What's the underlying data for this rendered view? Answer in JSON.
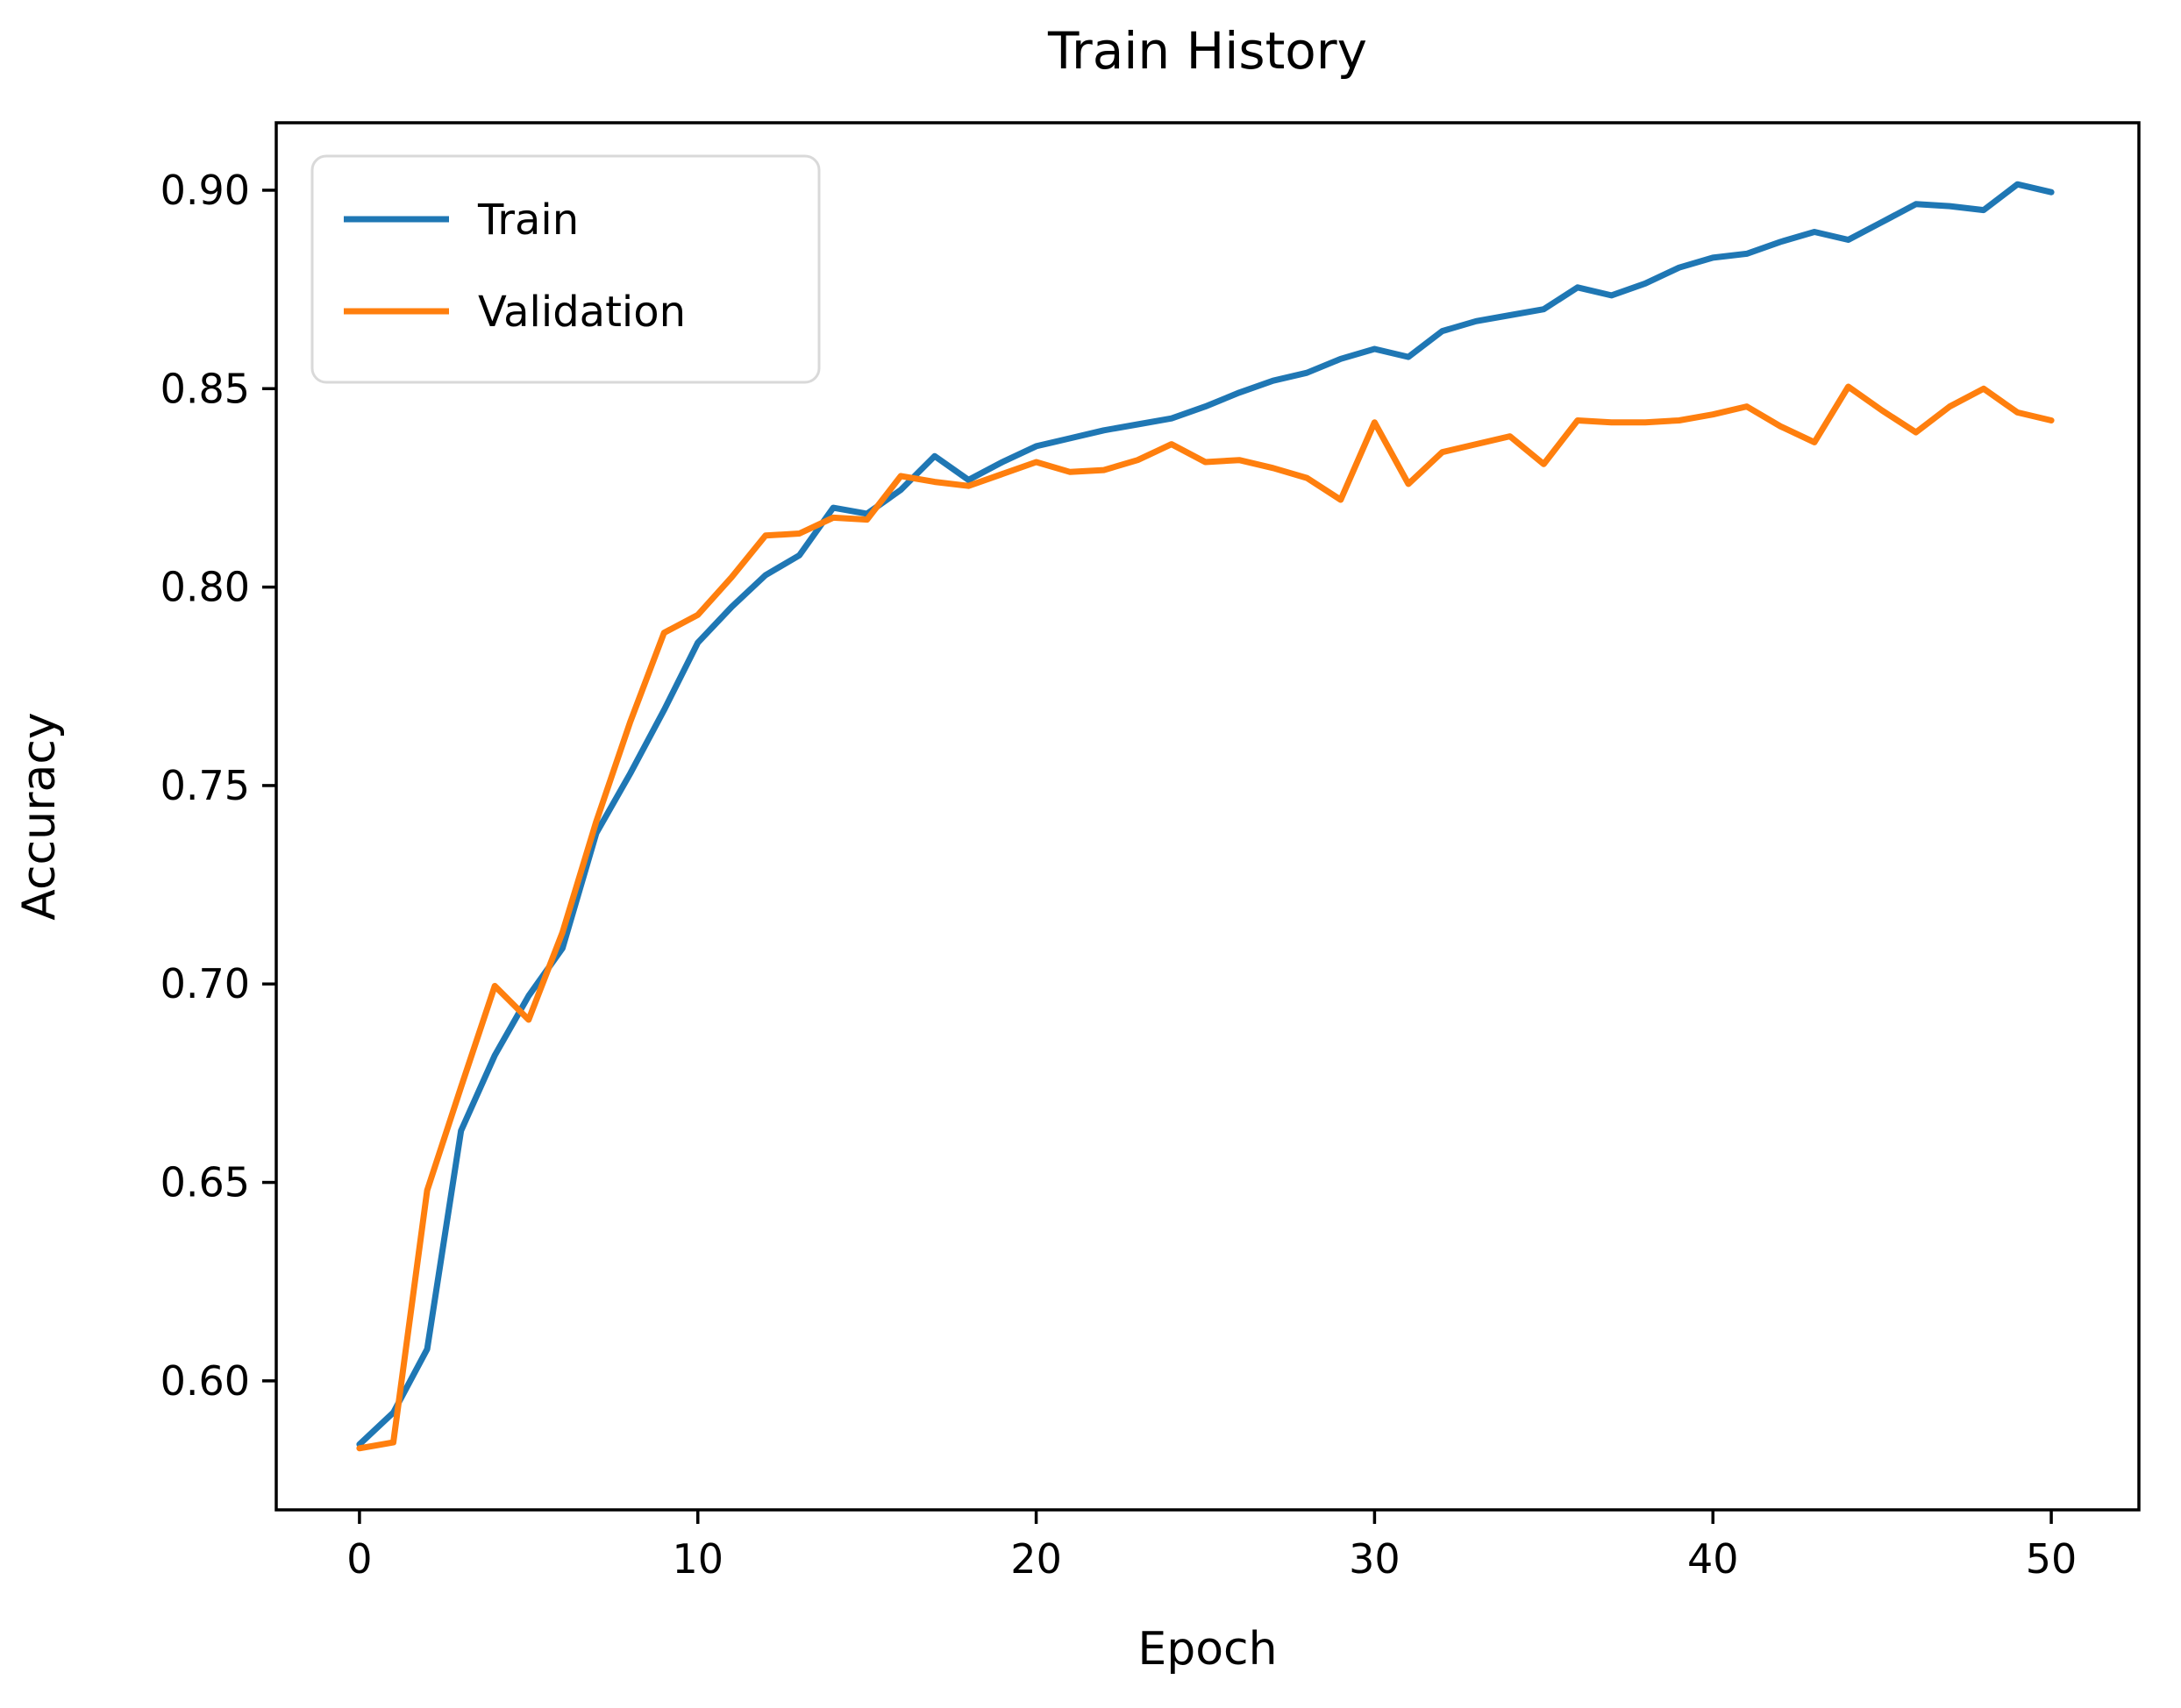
{
  "chart_data": {
    "type": "line",
    "title": "Train History",
    "xlabel": "Epoch",
    "ylabel": "Accuracy",
    "x": [
      0,
      1,
      2,
      3,
      4,
      5,
      6,
      7,
      8,
      9,
      10,
      11,
      12,
      13,
      14,
      15,
      16,
      17,
      18,
      19,
      20,
      21,
      22,
      23,
      24,
      25,
      26,
      27,
      28,
      29,
      30,
      31,
      32,
      33,
      34,
      35,
      36,
      37,
      38,
      39,
      40,
      41,
      42,
      43,
      44,
      45,
      46,
      47,
      48,
      49,
      50
    ],
    "series": [
      {
        "name": "Train",
        "color": "#1f77b4",
        "values": [
          0.584,
          0.592,
          0.608,
          0.663,
          0.682,
          0.697,
          0.709,
          0.738,
          0.753,
          0.769,
          0.786,
          0.795,
          0.803,
          0.808,
          0.82,
          0.8185,
          0.8245,
          0.833,
          0.827,
          0.8315,
          0.8355,
          0.8375,
          0.8395,
          0.841,
          0.8425,
          0.8455,
          0.849,
          0.852,
          0.854,
          0.8575,
          0.86,
          0.858,
          0.8645,
          0.867,
          0.8685,
          0.87,
          0.8755,
          0.8735,
          0.8765,
          0.8805,
          0.883,
          0.884,
          0.887,
          0.8895,
          0.8875,
          0.892,
          0.8965,
          0.896,
          0.895,
          0.9015,
          0.8995
        ]
      },
      {
        "name": "Validation",
        "color": "#ff7f0e",
        "values": [
          0.583,
          0.5845,
          0.648,
          0.674,
          0.6995,
          0.691,
          0.713,
          0.741,
          0.766,
          0.7885,
          0.793,
          0.8025,
          0.813,
          0.8135,
          0.8175,
          0.817,
          0.828,
          0.8265,
          0.8255,
          0.8285,
          0.8315,
          0.829,
          0.8295,
          0.832,
          0.836,
          0.8315,
          0.832,
          0.83,
          0.8275,
          0.822,
          0.8415,
          0.826,
          0.834,
          0.836,
          0.838,
          0.831,
          0.842,
          0.8415,
          0.8415,
          0.842,
          0.8435,
          0.8455,
          0.8405,
          0.8365,
          0.8505,
          0.8445,
          0.839,
          0.8455,
          0.85,
          0.844,
          0.842
        ]
      }
    ],
    "xticks": [
      0,
      10,
      20,
      30,
      40,
      50
    ],
    "yticks": [
      0.6,
      0.65,
      0.7,
      0.75,
      0.8,
      0.85,
      0.9
    ],
    "xlim": [
      -2.46,
      52.59
    ],
    "ylim": [
      0.5675,
      0.917
    ],
    "grid": false,
    "legend_position": "upper left"
  }
}
